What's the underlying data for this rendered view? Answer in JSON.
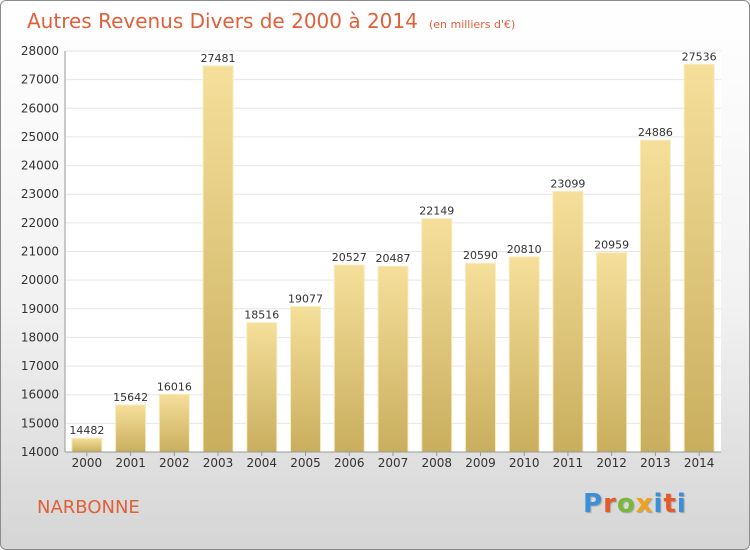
{
  "title": "Autres Revenus Divers de 2000 à 2014",
  "subtitle": "(en milliers d'€)",
  "city": "NARBONNE",
  "brand": {
    "name": "Proxiti",
    "letter_colors": [
      "#3a8fd6",
      "#e35b2a",
      "#7ab83a",
      "#f0a21c",
      "#3a8fd6",
      "#e35b2a",
      "#3a8fd6"
    ]
  },
  "colors": {
    "title": "#e0603a",
    "bar_top": "#f5df9a",
    "bar_bottom": "#c9ae5e",
    "grid": "#e6e6e6",
    "axis_text": "#333333"
  },
  "chart_data": {
    "type": "bar",
    "title": "Autres Revenus Divers de 2000 à 2014",
    "subtitle": "(en milliers d'€)",
    "xlabel": "",
    "ylabel": "",
    "ylim": [
      14000,
      28000
    ],
    "yticks": [
      14000,
      15000,
      16000,
      17000,
      18000,
      19000,
      20000,
      21000,
      22000,
      23000,
      24000,
      25000,
      26000,
      27000,
      28000
    ],
    "grid": true,
    "legend": "none",
    "categories": [
      "2000",
      "2001",
      "2002",
      "2003",
      "2004",
      "2005",
      "2006",
      "2007",
      "2008",
      "2009",
      "2010",
      "2011",
      "2012",
      "2013",
      "2014"
    ],
    "values": [
      14482,
      15642,
      16016,
      27481,
      18516,
      19077,
      20527,
      20487,
      22149,
      20590,
      20810,
      23099,
      20959,
      24886,
      27536
    ]
  }
}
